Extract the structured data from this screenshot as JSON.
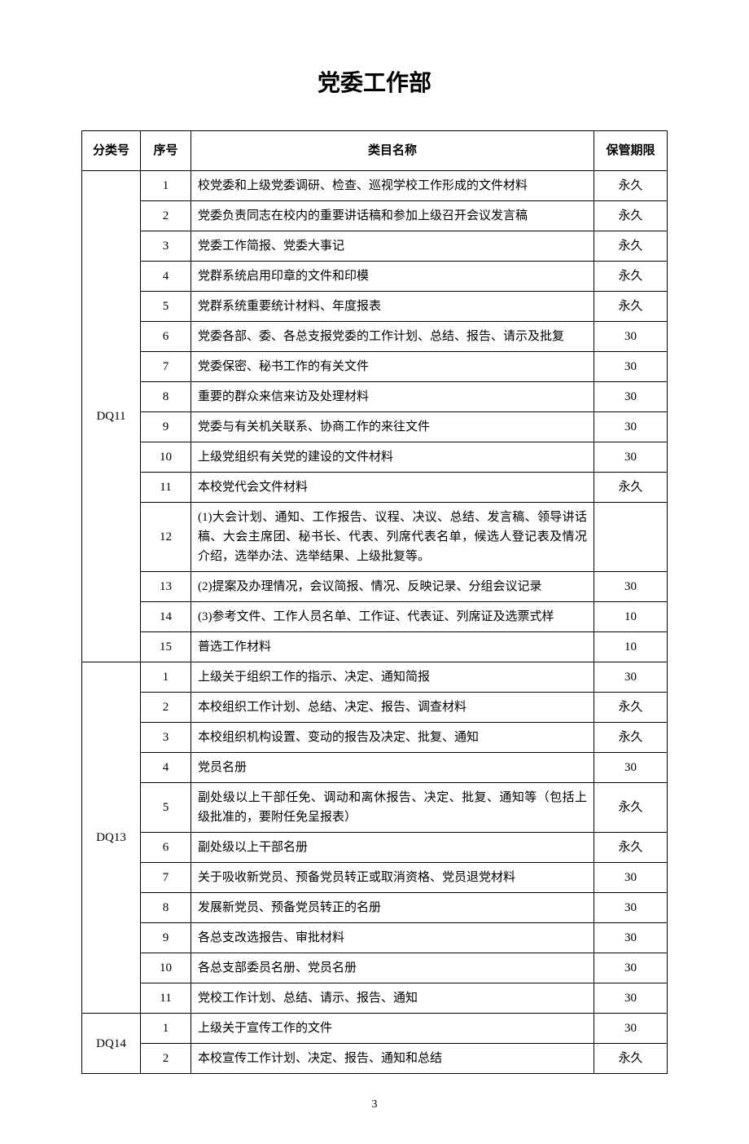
{
  "title": "党委工作部",
  "headers": {
    "category": "分类号",
    "seq": "序号",
    "name": "类目名称",
    "period": "保管期限"
  },
  "groups": [
    {
      "category": "DQ11",
      "rows": [
        {
          "seq": "1",
          "name": "校党委和上级党委调研、检查、巡视学校工作形成的文件材料",
          "period": "永久"
        },
        {
          "seq": "2",
          "name": "党委负责同志在校内的重要讲话稿和参加上级召开会议发言稿",
          "period": "永久"
        },
        {
          "seq": "3",
          "name": "党委工作简报、党委大事记",
          "period": "永久"
        },
        {
          "seq": "4",
          "name": "党群系统启用印章的文件和印模",
          "period": "永久"
        },
        {
          "seq": "5",
          "name": "党群系统重要统计材料、年度报表",
          "period": "永久"
        },
        {
          "seq": "6",
          "name": "党委各部、委、各总支报党委的工作计划、总结、报告、请示及批复",
          "period": "30"
        },
        {
          "seq": "7",
          "name": "党委保密、秘书工作的有关文件",
          "period": "30"
        },
        {
          "seq": "8",
          "name": "重要的群众来信来访及处理材料",
          "period": "30"
        },
        {
          "seq": "9",
          "name": "党委与有关机关联系、协商工作的来往文件",
          "period": "30"
        },
        {
          "seq": "10",
          "name": "上级党组织有关党的建设的文件材料",
          "period": "30"
        },
        {
          "seq": "11",
          "name": "本校党代会文件材料",
          "period": "永久"
        },
        {
          "seq": "12",
          "name": "(1)大会计划、通知、工作报告、议程、决议、总结、发言稿、领导讲话稿、大会主席团、秘书长、代表、列席代表名单，候选人登记表及情况介绍，选举办法、选举结果、上级批复等。",
          "period": ""
        },
        {
          "seq": "13",
          "name": "(2)提案及办理情况，会议简报、情况、反映记录、分组会议记录",
          "period": "30"
        },
        {
          "seq": "14",
          "name": "(3)参考文件、工作人员名单、工作证、代表证、列席证及选票式样",
          "period": "10"
        },
        {
          "seq": "15",
          "name": "普选工作材料",
          "period": "10"
        }
      ]
    },
    {
      "category": "DQ13",
      "rows": [
        {
          "seq": "1",
          "name": "上级关于组织工作的指示、决定、通知简报",
          "period": "30"
        },
        {
          "seq": "2",
          "name": "本校组织工作计划、总结、决定、报告、调查材料",
          "period": "永久"
        },
        {
          "seq": "3",
          "name": "本校组织机构设置、变动的报告及决定、批复、通知",
          "period": "永久"
        },
        {
          "seq": "4",
          "name": "党员名册",
          "period": "30"
        },
        {
          "seq": "5",
          "name": "副处级以上干部任免、调动和离休报告、决定、批复、通知等（包括上级批准的，要附任免呈报表）",
          "period": "永久"
        },
        {
          "seq": "6",
          "name": "副处级以上干部名册",
          "period": "永久"
        },
        {
          "seq": "7",
          "name": "关于吸收新党员、预备党员转正或取消资格、党员退党材料",
          "period": "30"
        },
        {
          "seq": "8",
          "name": "发展新党员、预备党员转正的名册",
          "period": "30"
        },
        {
          "seq": "9",
          "name": "各总支改选报告、审批材料",
          "period": "30"
        },
        {
          "seq": "10",
          "name": "各总支部委员名册、党员名册",
          "period": "30"
        },
        {
          "seq": "11",
          "name": "党校工作计划、总结、请示、报告、通知",
          "period": "30"
        }
      ]
    },
    {
      "category": "DQ14",
      "rows": [
        {
          "seq": "1",
          "name": "上级关于宣传工作的文件",
          "period": "30"
        },
        {
          "seq": "2",
          "name": "本校宣传工作计划、决定、报告、通知和总结",
          "period": "永久"
        }
      ]
    }
  ],
  "pageNumber": "3"
}
